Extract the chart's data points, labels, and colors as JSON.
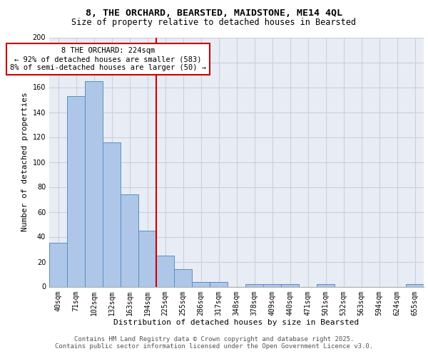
{
  "title_line1": "8, THE ORCHARD, BEARSTED, MAIDSTONE, ME14 4QL",
  "title_line2": "Size of property relative to detached houses in Bearsted",
  "xlabel": "Distribution of detached houses by size in Bearsted",
  "ylabel": "Number of detached properties",
  "footer_line1": "Contains HM Land Registry data © Crown copyright and database right 2025.",
  "footer_line2": "Contains public sector information licensed under the Open Government Licence v3.0.",
  "categories": [
    "40sqm",
    "71sqm",
    "102sqm",
    "132sqm",
    "163sqm",
    "194sqm",
    "225sqm",
    "255sqm",
    "286sqm",
    "317sqm",
    "348sqm",
    "378sqm",
    "409sqm",
    "440sqm",
    "471sqm",
    "501sqm",
    "532sqm",
    "563sqm",
    "594sqm",
    "624sqm",
    "655sqm"
  ],
  "values": [
    35,
    153,
    165,
    116,
    74,
    45,
    25,
    14,
    4,
    4,
    0,
    2,
    2,
    2,
    0,
    2,
    0,
    0,
    0,
    0,
    2
  ],
  "bar_color": "#aec6e8",
  "bar_edge_color": "#5a8fc2",
  "reference_line_color": "#cc0000",
  "annotation_text": "8 THE ORCHARD: 224sqm\n← 92% of detached houses are smaller (583)\n8% of semi-detached houses are larger (50) →",
  "annotation_box_color": "#cc0000",
  "annotation_bg": "#ffffff",
  "ylim": [
    0,
    200
  ],
  "yticks": [
    0,
    20,
    40,
    60,
    80,
    100,
    120,
    140,
    160,
    180,
    200
  ],
  "grid_color": "#c8d0dc",
  "bg_color": "#e8edf5",
  "title_fontsize": 9.5,
  "subtitle_fontsize": 8.5,
  "axis_label_fontsize": 8,
  "tick_fontsize": 7,
  "annotation_fontsize": 7.5,
  "footer_fontsize": 6.5
}
